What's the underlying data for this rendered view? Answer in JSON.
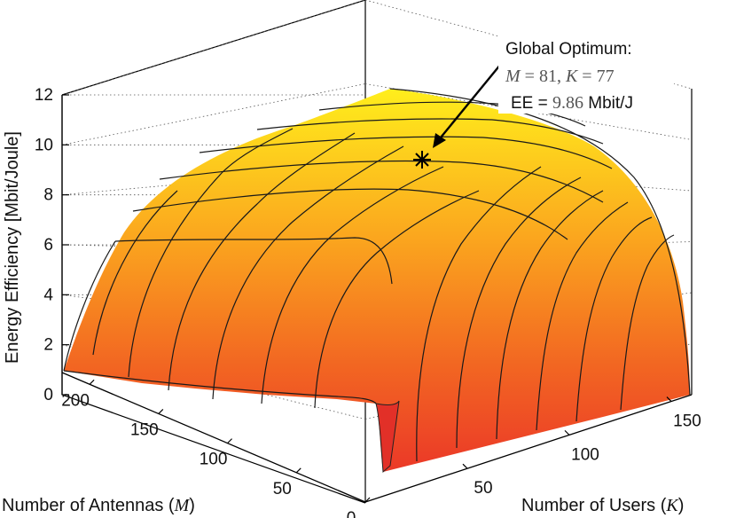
{
  "chart_data": {
    "type": "surface3d",
    "title": "",
    "zlabel": "Energy Efficiency [Mbit/Joule]",
    "xlabel_text": "Number of Antennas (",
    "xlabel_var": "M",
    "xlabel_close": ")",
    "ylabel_text": "Number of Users (",
    "ylabel_var": "K",
    "ylabel_close": ")",
    "z_ticks": [
      "0",
      "2",
      "4",
      "6",
      "8",
      "10",
      "12"
    ],
    "m_ticks": [
      "0",
      "50",
      "100",
      "150",
      "200"
    ],
    "k_ticks": [
      "50",
      "100",
      "150"
    ],
    "m_range": [
      0,
      220
    ],
    "k_range": [
      0,
      160
    ],
    "z_range": [
      0,
      12
    ],
    "grid": true,
    "colormap": "autumn",
    "optimum": {
      "M": 81,
      "K": 77,
      "EE": 9.86
    },
    "annotation": {
      "line1": "Global Optimum:",
      "line2_m": "M",
      "line2_eq1": " = 81, ",
      "line2_k": "K",
      "line2_eq2": " = 77",
      "line3_pre": "EE = ",
      "line3_val": "9.86",
      "line3_unit": " Mbit/J"
    }
  }
}
